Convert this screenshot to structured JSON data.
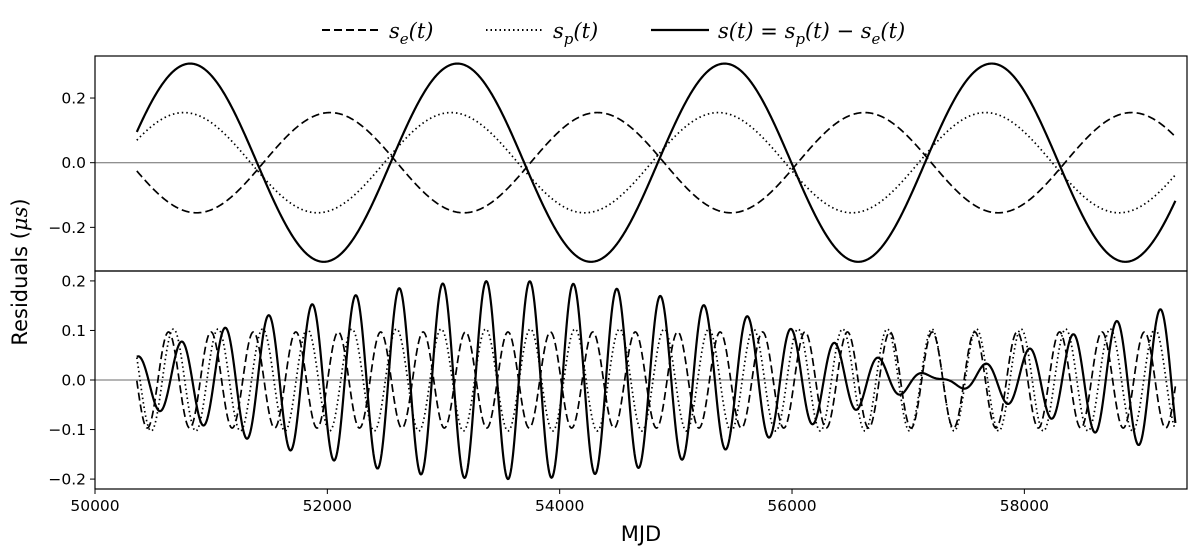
{
  "chart_data": {
    "type": "line",
    "xlabel": "MJD",
    "ylabel": "Residuals (μs)",
    "xlim": [
      50000,
      59400
    ],
    "x_ticks": [
      "50000",
      "52000",
      "54000",
      "56000",
      "58000"
    ],
    "legend": {
      "placement": "top-center",
      "entries": [
        {
          "name": "s_e(t)",
          "style": "dashed"
        },
        {
          "name": "s_p(t)",
          "style": "dotted"
        },
        {
          "name": "s(t) = s_p(t) − s_e(t)",
          "style": "solid"
        }
      ]
    },
    "x_start": 50360,
    "x_end": 59300,
    "panels": [
      {
        "id": "top",
        "ylim": [
          -0.335,
          0.33
        ],
        "y_ticks": [
          "0.2",
          "0.0",
          "−0.2"
        ],
        "zero_line": true,
        "series": [
          {
            "name": "s_e(t)",
            "style": "dashed",
            "components": [
              {
                "amplitude": 0.155,
                "period_days": 2300,
                "phase_rad": -2.32
              }
            ]
          },
          {
            "name": "s_p(t)",
            "style": "dotted",
            "components": [
              {
                "amplitude": 0.155,
                "period_days": 2300,
                "phase_rad": 1.12
              }
            ]
          },
          {
            "name": "s(t) = s_p(t) − s_e(t)",
            "style": "solid",
            "components": [
              {
                "amplitude": 0.155,
                "period_days": 2300,
                "phase_rad": 1.12
              },
              {
                "amplitude": -0.155,
                "period_days": 2300,
                "phase_rad": -2.32
              }
            ]
          }
        ]
      },
      {
        "id": "bottom",
        "ylim": [
          -0.22,
          0.22
        ],
        "y_ticks": [
          "0.2",
          "0.1",
          "0.0",
          "−0.1",
          "−0.2"
        ],
        "zero_line": true,
        "series": [
          {
            "name": "s_e(t)",
            "style": "dashed",
            "components": [
              {
                "amplitude": 0.097,
                "period_days": 365.25,
                "phase_rad": -2.36
              }
            ]
          },
          {
            "name": "s_p(t)",
            "style": "dotted",
            "components": [
              {
                "amplitude": 0.103,
                "period_days": 384.0,
                "phase_rad": 1.77
              }
            ]
          },
          {
            "name": "s(t) = s_p(t) − s_e(t)",
            "style": "solid",
            "components": [
              {
                "amplitude": 0.103,
                "period_days": 384.0,
                "phase_rad": 1.77
              },
              {
                "amplitude": -0.097,
                "period_days": 365.25,
                "phase_rad": -2.36
              }
            ]
          }
        ]
      }
    ]
  }
}
